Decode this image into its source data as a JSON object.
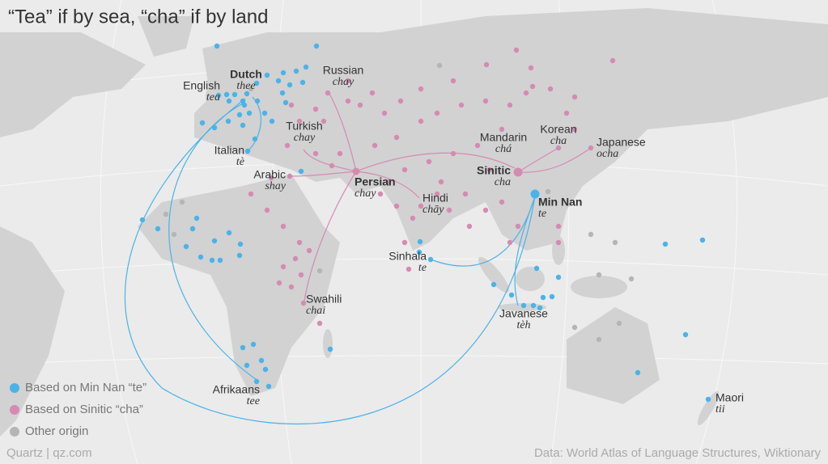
{
  "title": "“Tea” if by sea, “cha” if by land",
  "labels": [
    {
      "name": "English",
      "word": "tea"
    },
    {
      "name": "Dutch",
      "word": "thee"
    },
    {
      "name": "Russian",
      "word": "chay"
    },
    {
      "name": "Turkish",
      "word": "chay"
    },
    {
      "name": "Italian",
      "word": "tè"
    },
    {
      "name": "Arabic",
      "word": "shay"
    },
    {
      "name": "Persian",
      "word": "chay"
    },
    {
      "name": "Hindi",
      "word": "chāy"
    },
    {
      "name": "Mandarin",
      "word": "chá"
    },
    {
      "name": "Korean",
      "word": "cha"
    },
    {
      "name": "Japanese",
      "word": "ocha"
    },
    {
      "name": "Sinitic",
      "word": "cha"
    },
    {
      "name": "Min Nan",
      "word": "te"
    },
    {
      "name": "Sinhala",
      "word": "te"
    },
    {
      "name": "Swahili",
      "word": "chai"
    },
    {
      "name": "Javanese",
      "word": "tèh"
    },
    {
      "name": "Afrikaans",
      "word": "tee"
    },
    {
      "name": "Maori",
      "word": "tii"
    }
  ],
  "legend": [
    {
      "label": "Based on Min Nan “te”",
      "color": "#4ab3e8"
    },
    {
      "label": "Based on Sinitic “cha”",
      "color": "#d58bb1"
    },
    {
      "label": "Other origin",
      "color": "#b5b5b5"
    }
  ],
  "footer": {
    "credit": "Quartz | qz.com",
    "source": "Data: World Atlas of Language Structures, Wiktionary"
  }
}
